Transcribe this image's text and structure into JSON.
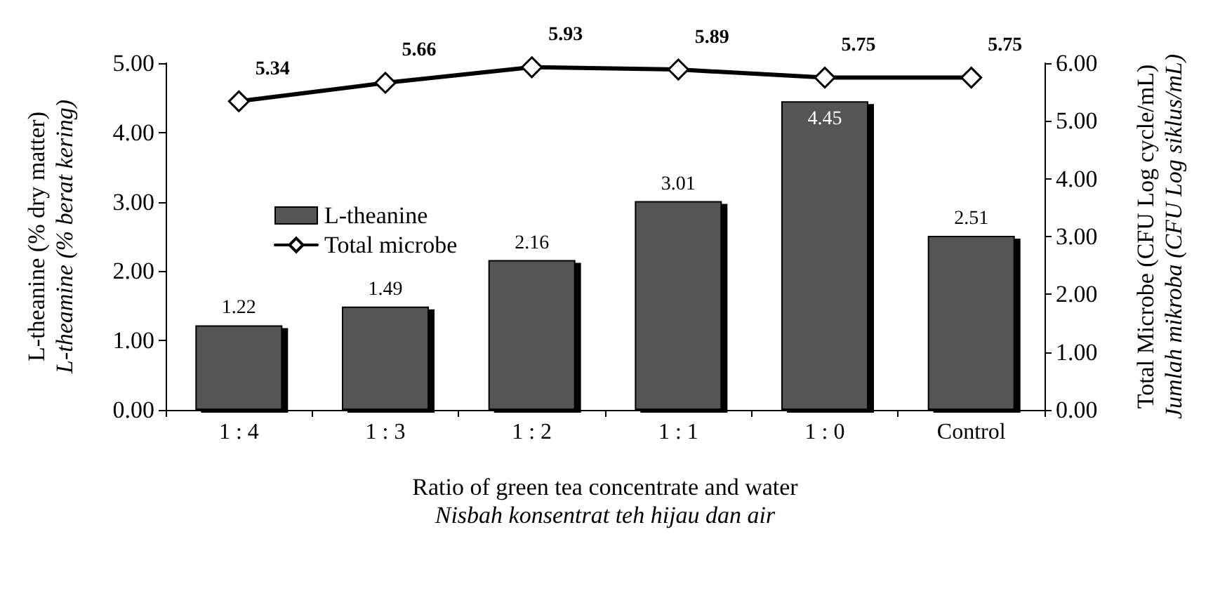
{
  "chart_data": {
    "type": "bar",
    "xlabel": "Ratio of green tea concentrate and water\nNisbah konsentrat teh hijau dan air",
    "ylabel": "L-theanine (% dry matter)\nL-theamine (% berat kering)",
    "y2label": "Total Microbe (CFU Log cycle/mL)\nJumlah mikroba (CFU Log siklus/mL)",
    "categories": [
      "1 : 4",
      "1 : 3",
      "1 : 2",
      "1 : 1",
      "1 : 0",
      "Control"
    ],
    "series": [
      {
        "name": "L-theanine",
        "color": "#555555",
        "values": [
          1.22,
          1.49,
          2.16,
          3.01,
          4.45,
          2.51
        ]
      },
      {
        "name": "Total microbe",
        "type": "line",
        "axis": "y2",
        "color": "#000000",
        "marker": "diamond",
        "line_style": "solid",
        "values": [
          5.34,
          5.66,
          5.93,
          5.89,
          5.75,
          5.75
        ]
      }
    ],
    "ylim": [
      0,
      5
    ],
    "yticks": [
      {
        "value": 0,
        "label": "0.00"
      },
      {
        "value": 1,
        "label": "1.00"
      },
      {
        "value": 2,
        "label": "2.00"
      },
      {
        "value": 3,
        "label": "3.00"
      },
      {
        "value": 4,
        "label": "4.00"
      },
      {
        "value": 5,
        "label": "5.00"
      }
    ],
    "y2lim": [
      0,
      6
    ],
    "y2ticks": [
      {
        "value": 0,
        "label": "0.00"
      },
      {
        "value": 1,
        "label": "1.00"
      },
      {
        "value": 2,
        "label": "2.00"
      },
      {
        "value": 3,
        "label": "3.00"
      },
      {
        "value": 4,
        "label": "4.00"
      },
      {
        "value": 5,
        "label": "5.00"
      },
      {
        "value": 6,
        "label": "6.00"
      }
    ],
    "data_labels": true,
    "legend": "top left",
    "grid": false
  }
}
